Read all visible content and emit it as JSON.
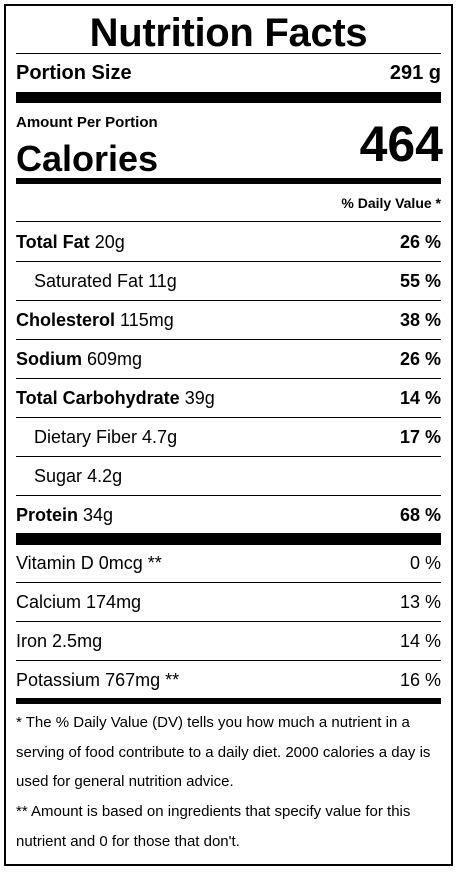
{
  "title": "Nutrition Facts",
  "portion": {
    "label": "Portion Size",
    "value": "291 g"
  },
  "amount_per_portion": "Amount Per Portion",
  "calories": {
    "label": "Calories",
    "value": "464"
  },
  "daily_value_header": "% Daily Value *",
  "nutrients": [
    {
      "name": "Total Fat",
      "amount": "20g",
      "dv": "26 %"
    },
    {
      "name": "Saturated Fat",
      "amount": "11g",
      "dv": "55 %"
    },
    {
      "name": "Cholesterol",
      "amount": "115mg",
      "dv": "38 %"
    },
    {
      "name": "Sodium",
      "amount": "609mg",
      "dv": "26 %"
    },
    {
      "name": "Total Carbohydrate",
      "amount": "39g",
      "dv": "14 %"
    },
    {
      "name": "Dietary Fiber",
      "amount": "4.7g",
      "dv": "17 %"
    },
    {
      "name": "Sugar",
      "amount": "4.2g",
      "dv": ""
    },
    {
      "name": "Protein",
      "amount": "34g",
      "dv": "68 %"
    }
  ],
  "vitamins": [
    {
      "name": "Vitamin D",
      "amount": "0mcg **",
      "dv": "0 %"
    },
    {
      "name": "Calcium",
      "amount": "174mg",
      "dv": "13 %"
    },
    {
      "name": "Iron",
      "amount": "2.5mg",
      "dv": "14 %"
    },
    {
      "name": "Potassium",
      "amount": "767mg **",
      "dv": "16 %"
    }
  ],
  "footnotes": [
    "* The % Daily Value (DV) tells you how much a nutrient in a serving of food contribute to a daily diet. 2000 calories a day is used for general nutrition advice.",
    "** Amount is based on ingredients that specify value for this nutrient and 0 for those that don't."
  ]
}
